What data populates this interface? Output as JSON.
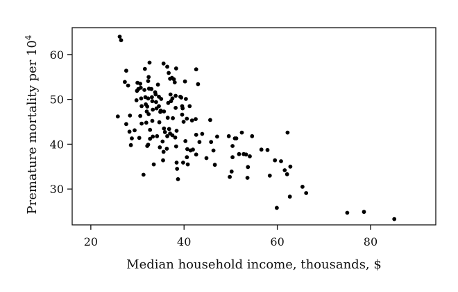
{
  "chart_data": {
    "type": "scatter",
    "xlabel": "Median household income, thousands, $",
    "ylabel_main": "Premature mortality per 10",
    "ylabel_exp": "4",
    "xlim": [
      16,
      94
    ],
    "ylim": [
      22,
      66
    ],
    "xticks": [
      20,
      40,
      60,
      80
    ],
    "yticks": [
      30,
      40,
      50,
      60
    ],
    "grid": false,
    "legend": "none",
    "points": [
      [
        26.2,
        64.0
      ],
      [
        26.5,
        63.2
      ],
      [
        25.8,
        46.2
      ],
      [
        27.3,
        53.9
      ],
      [
        27.6,
        56.4
      ],
      [
        28.0,
        53.1
      ],
      [
        28.4,
        46.4
      ],
      [
        27.6,
        44.5
      ],
      [
        28.3,
        42.8
      ],
      [
        28.8,
        41.3
      ],
      [
        28.6,
        39.8
      ],
      [
        29.4,
        43.1
      ],
      [
        29.8,
        49.8
      ],
      [
        29.9,
        51.9
      ],
      [
        30.2,
        52.3
      ],
      [
        30.0,
        53.7
      ],
      [
        30.6,
        53.5
      ],
      [
        30.7,
        52.6
      ],
      [
        30.8,
        50.2
      ],
      [
        30.9,
        48.5
      ],
      [
        30.6,
        46.3
      ],
      [
        30.4,
        41.4
      ],
      [
        30.9,
        44.6
      ],
      [
        31.5,
        52.1
      ],
      [
        31.6,
        56.8
      ],
      [
        31.7,
        50.5
      ],
      [
        31.8,
        48.9
      ],
      [
        32.0,
        47.3
      ],
      [
        31.9,
        44.8
      ],
      [
        32.3,
        54.1
      ],
      [
        32.4,
        55.0
      ],
      [
        32.6,
        58.2
      ],
      [
        32.5,
        52.4
      ],
      [
        32.3,
        50.2
      ],
      [
        32.1,
        48.4
      ],
      [
        32.4,
        46.7
      ],
      [
        32.7,
        43.2
      ],
      [
        32.3,
        39.9
      ],
      [
        32.1,
        39.6
      ],
      [
        32.7,
        41.2
      ],
      [
        31.3,
        33.2
      ],
      [
        33.0,
        52.3
      ],
      [
        33.1,
        50.5
      ],
      [
        33.2,
        49.6
      ],
      [
        33.3,
        47.7
      ],
      [
        33.2,
        45.2
      ],
      [
        33.3,
        41.7
      ],
      [
        33.5,
        35.5
      ],
      [
        33.8,
        51.6
      ],
      [
        33.9,
        51.1
      ],
      [
        34.0,
        49.4
      ],
      [
        34.1,
        48.0
      ],
      [
        34.2,
        41.8
      ],
      [
        34.4,
        53.3
      ],
      [
        34.6,
        50.6
      ],
      [
        34.6,
        48.5
      ],
      [
        34.9,
        47.2
      ],
      [
        34.7,
        44.9
      ],
      [
        34.8,
        39.3
      ],
      [
        35.0,
        47.5
      ],
      [
        35.1,
        50.1
      ],
      [
        35.6,
        58.0
      ],
      [
        35.7,
        47.3
      ],
      [
        35.7,
        43.5
      ],
      [
        35.9,
        42.7
      ],
      [
        35.4,
        40.6
      ],
      [
        35.6,
        38.3
      ],
      [
        35.5,
        36.4
      ],
      [
        36.4,
        57.3
      ],
      [
        36.7,
        55.9
      ],
      [
        36.6,
        49.2
      ],
      [
        36.5,
        45.9
      ],
      [
        36.8,
        43.4
      ],
      [
        36.4,
        41.8
      ],
      [
        36.3,
        39.0
      ],
      [
        37.0,
        54.6
      ],
      [
        37.4,
        54.8
      ],
      [
        37.1,
        51.1
      ],
      [
        37.2,
        49.6
      ],
      [
        37.5,
        50.2
      ],
      [
        37.0,
        42.4
      ],
      [
        37.5,
        42.0
      ],
      [
        37.6,
        45.8
      ],
      [
        37.8,
        54.5
      ],
      [
        38.0,
        53.8
      ],
      [
        38.3,
        56.9
      ],
      [
        38.2,
        50.8
      ],
      [
        38.2,
        48.1
      ],
      [
        38.4,
        43.0
      ],
      [
        38.1,
        41.5
      ],
      [
        38.3,
        39.5
      ],
      [
        38.4,
        35.9
      ],
      [
        38.5,
        34.5
      ],
      [
        38.7,
        32.2
      ],
      [
        39.2,
        50.6
      ],
      [
        39.4,
        50.4
      ],
      [
        39.6,
        48.5
      ],
      [
        39.6,
        46.6
      ],
      [
        39.7,
        48.0
      ],
      [
        39.9,
        45.0
      ],
      [
        39.8,
        35.9
      ],
      [
        40.2,
        54.0
      ],
      [
        40.4,
        50.1
      ],
      [
        40.6,
        45.7
      ],
      [
        40.3,
        40.7
      ],
      [
        40.7,
        38.9
      ],
      [
        40.6,
        37.1
      ],
      [
        40.8,
        35.5
      ],
      [
        41.2,
        48.5
      ],
      [
        41.7,
        45.3
      ],
      [
        41.4,
        38.6
      ],
      [
        41.9,
        38.8
      ],
      [
        42.6,
        56.7
      ],
      [
        42.5,
        45.6
      ],
      [
        42.6,
        42.1
      ],
      [
        42.6,
        37.7
      ],
      [
        43.0,
        53.4
      ],
      [
        43.3,
        40.5
      ],
      [
        43.9,
        42.3
      ],
      [
        44.8,
        36.9
      ],
      [
        45.6,
        45.4
      ],
      [
        45.8,
        40.5
      ],
      [
        46.3,
        38.6
      ],
      [
        46.6,
        35.4
      ],
      [
        47.1,
        41.7
      ],
      [
        49.6,
        41.8
      ],
      [
        49.8,
        32.7
      ],
      [
        50.2,
        33.9
      ],
      [
        50.4,
        37.1
      ],
      [
        50.4,
        39.6
      ],
      [
        50.9,
        41.3
      ],
      [
        51.2,
        41.3
      ],
      [
        51.8,
        37.8
      ],
      [
        52.4,
        42.6
      ],
      [
        52.8,
        37.8
      ],
      [
        53.3,
        37.7
      ],
      [
        53.6,
        32.5
      ],
      [
        53.7,
        34.9
      ],
      [
        54.1,
        37.3
      ],
      [
        54.6,
        41.8
      ],
      [
        56.6,
        38.8
      ],
      [
        57.9,
        38.7
      ],
      [
        58.4,
        33.0
      ],
      [
        59.5,
        36.4
      ],
      [
        59.9,
        25.8
      ],
      [
        60.8,
        36.2
      ],
      [
        61.6,
        34.2
      ],
      [
        62.1,
        33.3
      ],
      [
        62.2,
        42.6
      ],
      [
        62.7,
        28.3
      ],
      [
        62.8,
        35.0
      ],
      [
        65.4,
        30.5
      ],
      [
        66.2,
        29.1
      ],
      [
        75.0,
        24.7
      ],
      [
        78.6,
        24.9
      ],
      [
        85.1,
        23.3
      ]
    ]
  }
}
